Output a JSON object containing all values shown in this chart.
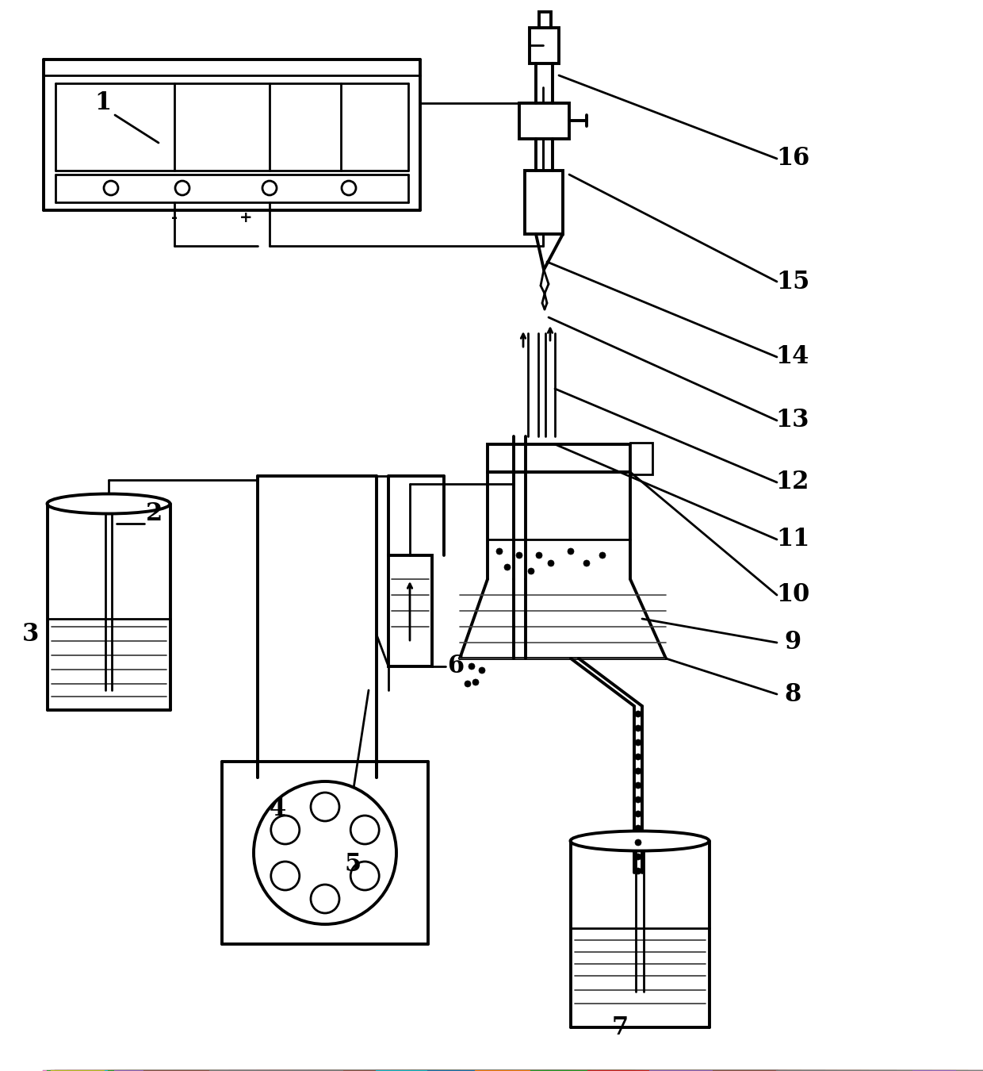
{
  "bg": "#ffffff",
  "lc": "#000000",
  "lw": 2.0,
  "lw2": 2.8,
  "lw_thin": 1.2,
  "fs": 22
}
